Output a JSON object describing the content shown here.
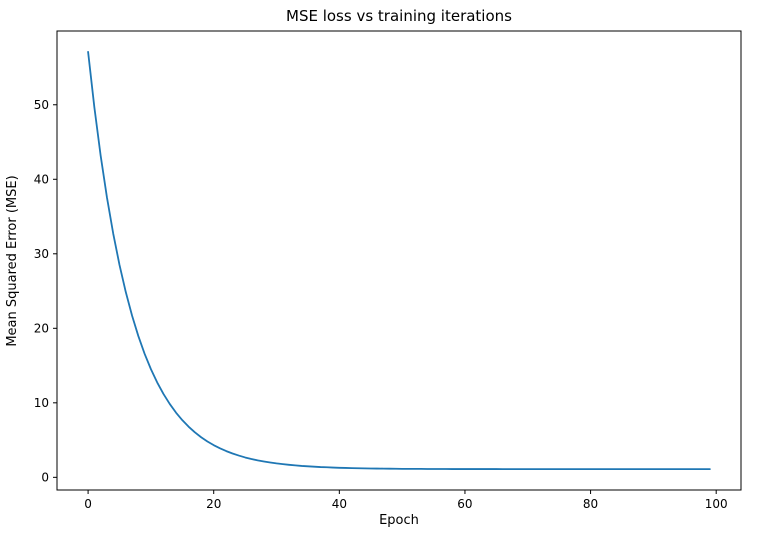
{
  "figure": {
    "background": "#ffffff",
    "line_color": "#1f77b4",
    "axis_color": "#000000"
  },
  "chart_data": {
    "type": "line",
    "title": "MSE loss vs training iterations",
    "xlabel": "Epoch",
    "ylabel": "Mean Squared Error (MSE)",
    "grid": false,
    "legend": "none",
    "xlim": [
      -4.95,
      103.95
    ],
    "ylim": [
      -1.7,
      59.9
    ],
    "xticks": [
      0,
      20,
      40,
      60,
      80,
      100
    ],
    "yticks": [
      0,
      10,
      20,
      30,
      40,
      50
    ],
    "series_name": "MSE loss",
    "x": [
      0,
      1,
      2,
      3,
      4,
      5,
      6,
      7,
      8,
      9,
      10,
      11,
      12,
      13,
      14,
      15,
      16,
      17,
      18,
      19,
      20,
      21,
      22,
      23,
      24,
      25,
      26,
      27,
      28,
      29,
      30,
      31,
      32,
      33,
      34,
      35,
      36,
      37,
      38,
      39,
      40,
      41,
      42,
      43,
      44,
      45,
      46,
      47,
      48,
      49,
      50,
      51,
      52,
      53,
      54,
      55,
      56,
      57,
      58,
      59,
      60,
      61,
      62,
      63,
      64,
      65,
      66,
      67,
      68,
      69,
      70,
      71,
      72,
      73,
      74,
      75,
      76,
      77,
      78,
      79,
      80,
      81,
      82,
      83,
      84,
      85,
      86,
      87,
      88,
      89,
      90,
      91,
      92,
      93,
      94,
      95,
      96,
      97,
      98,
      99
    ],
    "values": [
      57.1,
      49.65,
      43.18,
      37.58,
      32.72,
      28.51,
      24.87,
      21.7,
      18.96,
      16.58,
      14.52,
      12.74,
      11.19,
      9.85,
      8.68,
      7.67,
      6.8,
      6.04,
      5.38,
      4.81,
      4.32,
      3.89,
      3.52,
      3.2,
      2.92,
      2.67,
      2.46,
      2.28,
      2.13,
      1.99,
      1.87,
      1.77,
      1.68,
      1.6,
      1.53,
      1.48,
      1.43,
      1.38,
      1.35,
      1.31,
      1.28,
      1.26,
      1.24,
      1.22,
      1.2,
      1.19,
      1.18,
      1.17,
      1.16,
      1.15,
      1.14,
      1.14,
      1.13,
      1.13,
      1.12,
      1.12,
      1.12,
      1.12,
      1.11,
      1.11,
      1.11,
      1.11,
      1.11,
      1.11,
      1.11,
      1.11,
      1.1,
      1.1,
      1.1,
      1.1,
      1.1,
      1.1,
      1.1,
      1.1,
      1.1,
      1.1,
      1.1,
      1.1,
      1.1,
      1.1,
      1.1,
      1.1,
      1.1,
      1.1,
      1.1,
      1.1,
      1.1,
      1.1,
      1.1,
      1.1,
      1.1,
      1.1,
      1.1,
      1.1,
      1.1,
      1.1,
      1.1,
      1.1,
      1.1,
      1.1
    ]
  }
}
